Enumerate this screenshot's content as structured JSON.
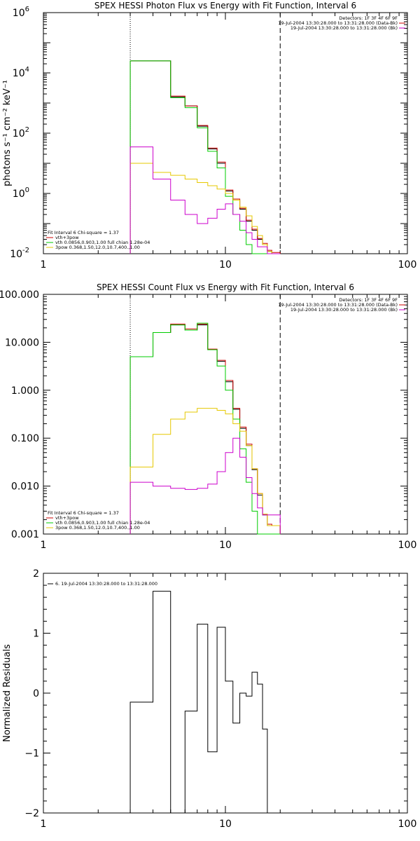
{
  "chart_data": [
    {
      "type": "line",
      "title": "SPEX HESSI Photon Flux vs Energy with Fit Function, Interval 6",
      "ylabel": "photons s⁻¹ cm⁻² keV⁻¹",
      "xlabel": "",
      "xscale": "log",
      "yscale": "log",
      "xlim": [
        1,
        100
      ],
      "ylim": [
        0.01,
        1000000
      ],
      "x_ticks": [
        {
          "v": 1,
          "label": "1"
        },
        {
          "v": 10,
          "label": "10"
        },
        {
          "v": 100,
          "label": "100"
        }
      ],
      "y_ticks": [
        {
          "v": 0.01,
          "base": "10",
          "exp": "-2"
        },
        {
          "v": 1,
          "base": "10",
          "exp": "0"
        },
        {
          "v": 100,
          "base": "10",
          "exp": "2"
        },
        {
          "v": 10000,
          "base": "10",
          "exp": "4"
        },
        {
          "v": 1000000,
          "base": "10",
          "exp": "6"
        }
      ],
      "vlines": [
        {
          "x": 3,
          "style": "dotted"
        },
        {
          "x": 20,
          "style": "dashed"
        }
      ],
      "legend_top_right": [
        {
          "text": "Detectors: 1F 3F 4F 6F 9F",
          "color": "#000000"
        },
        {
          "text": "19-Jul-2004 13:30:28.000 to 13:31:28.000 (Data-Bk)",
          "color": "#cc0000"
        },
        {
          "text": "19-Jul-2004 13:30:28.000 to 13:31:28.000 (Bk)",
          "color": "#cc00cc"
        }
      ],
      "legend_bottom_left": [
        {
          "text": "Fit Interval  6    Chi-square = 1.37",
          "color": "#000000"
        },
        {
          "text": "vth+3pow",
          "color": "#cc0000"
        },
        {
          "text": "vth 0.0856,0.903,1.00  full chian 1.28e-04",
          "color": "#00cc00"
        },
        {
          "text": "3pow 0.368,1.50,12.0,10.7,400.,1.00",
          "color": "#e6c800"
        }
      ],
      "bin_edges": [
        3,
        4,
        5,
        6,
        7,
        8,
        9,
        10,
        11,
        12,
        13,
        14,
        15,
        16,
        17,
        18,
        20
      ],
      "series": [
        {
          "color": "#000000",
          "values": [
            25000,
            25000,
            1600,
            800,
            170,
            30,
            10,
            1.2,
            0.6,
            0.3,
            0.12,
            0.06,
            0.03,
            0.02,
            0.012,
            0.01
          ]
        },
        {
          "color": "#cc0000",
          "values": [
            25000,
            25000,
            1700,
            800,
            180,
            32,
            11,
            1.3,
            0.65,
            0.32,
            0.13,
            0.065,
            0.032,
            0.022,
            0.013,
            0.011
          ]
        },
        {
          "color": "#00cc00",
          "values": [
            25000,
            25000,
            1500,
            700,
            150,
            25,
            7,
            0.8,
            0.2,
            0.06,
            0.02,
            0.01,
            0.01,
            0.01,
            0.01,
            0.01
          ]
        },
        {
          "color": "#e6c800",
          "values": [
            10,
            5,
            4,
            3,
            2.3,
            1.8,
            1.4,
            1,
            0.6,
            0.35,
            0.18,
            0.08,
            0.04,
            0.02,
            0.012,
            0.01
          ]
        },
        {
          "color": "#cc00cc",
          "values": [
            35,
            3,
            0.6,
            0.2,
            0.1,
            0.15,
            0.3,
            0.45,
            0.2,
            0.12,
            0.05,
            0.03,
            0.017,
            0.017,
            0.01,
            0.01
          ]
        }
      ]
    },
    {
      "type": "line",
      "title": "SPEX HESSI Count Flux vs Energy with Fit Function, Interval 6",
      "ylabel": "",
      "xlabel": "",
      "xscale": "log",
      "yscale": "log",
      "xlim": [
        1,
        100
      ],
      "ylim": [
        0.001,
        100
      ],
      "x_ticks": [
        {
          "v": 1,
          "label": "1"
        },
        {
          "v": 10,
          "label": "10"
        },
        {
          "v": 100,
          "label": "100"
        }
      ],
      "y_ticks": [
        {
          "v": 0.001,
          "label": "0.001"
        },
        {
          "v": 0.01,
          "label": "0.010"
        },
        {
          "v": 0.1,
          "label": "0.100"
        },
        {
          "v": 1,
          "label": "1.000"
        },
        {
          "v": 10,
          "label": "10.000"
        },
        {
          "v": 100,
          "label": "100.000"
        }
      ],
      "vlines": [
        {
          "x": 3,
          "style": "dotted"
        },
        {
          "x": 20,
          "style": "dashed"
        }
      ],
      "legend_top_right": [
        {
          "text": "Detectors: 1F 3F 4F 6F 9F",
          "color": "#000000"
        },
        {
          "text": "19-Jul-2004 13:30:28.000 to 13:31:28.000 (Data-Bk)",
          "color": "#cc0000"
        },
        {
          "text": "19-Jul-2004 13:30:28.000 to 13:31:28.000 (Bk)",
          "color": "#cc00cc"
        }
      ],
      "legend_bottom_left": [
        {
          "text": "Fit Interval  6    Chi-square = 1.37",
          "color": "#000000"
        },
        {
          "text": "vth+3pow",
          "color": "#cc0000"
        },
        {
          "text": "vth 0.0856,0.903,1.00  full chian 1.28e-04",
          "color": "#00cc00"
        },
        {
          "text": "3pow 0.368,1.50,12.0,10.7,400.,1.00",
          "color": "#e6c800"
        }
      ],
      "bin_edges": [
        3,
        4,
        5,
        6,
        7,
        8,
        9,
        10,
        11,
        12,
        13,
        14,
        15,
        16,
        17,
        18,
        20
      ],
      "series": [
        {
          "color": "#000000",
          "values": [
            5,
            16,
            23,
            18,
            23,
            7,
            4,
            1.5,
            0.4,
            0.16,
            0.07,
            0.022,
            0.0065,
            0.0025,
            0.0015,
            0.0015
          ]
        },
        {
          "color": "#cc0000",
          "values": [
            5,
            16,
            24,
            19,
            24,
            7.2,
            4.2,
            1.6,
            0.42,
            0.17,
            0.075,
            0.023,
            0.007,
            0.0026,
            0.0016,
            0.0015
          ]
        },
        {
          "color": "#00cc00",
          "values": [
            5,
            16,
            23,
            18,
            25,
            7,
            3.2,
            1.0,
            0.25,
            0.06,
            0.012,
            0.003,
            0.001,
            0.001,
            0.001,
            0.001
          ]
        },
        {
          "color": "#e6c800",
          "values": [
            0.025,
            0.12,
            0.25,
            0.35,
            0.42,
            0.42,
            0.38,
            0.32,
            0.2,
            0.14,
            0.07,
            0.023,
            0.007,
            0.0026,
            0.0015,
            0.0015
          ]
        },
        {
          "color": "#cc00cc",
          "values": [
            0.012,
            0.01,
            0.009,
            0.0085,
            0.009,
            0.011,
            0.02,
            0.05,
            0.1,
            0.04,
            0.015,
            0.007,
            0.0035,
            0.0025,
            0.0025,
            0.0025
          ]
        }
      ]
    },
    {
      "type": "line",
      "title": "",
      "ylabel": "Normalized Residuals",
      "xlabel": "",
      "xscale": "log",
      "yscale": "linear",
      "xlim": [
        1,
        100
      ],
      "ylim": [
        -2,
        2
      ],
      "x_ticks": [
        {
          "v": 1,
          "label": "1"
        },
        {
          "v": 10,
          "label": "10"
        },
        {
          "v": 100,
          "label": "100"
        }
      ],
      "y_ticks": [
        {
          "v": -2,
          "label": "−2"
        },
        {
          "v": -1,
          "label": "−1"
        },
        {
          "v": 0,
          "label": "0"
        },
        {
          "v": 1,
          "label": "1"
        },
        {
          "v": 2,
          "label": "2"
        }
      ],
      "vlines": [],
      "legend_top_left": [
        {
          "text": "6. 19-Jul-2004 13:30:28.000 to 13:31:28.000",
          "color": "#000000"
        }
      ],
      "bin_edges": [
        3,
        4,
        5,
        6,
        7,
        8,
        9,
        10,
        11,
        12,
        13,
        14,
        15,
        16,
        17,
        18,
        20
      ],
      "series": [
        {
          "color": "#000000",
          "values": [
            -0.15,
            1.7,
            -2.05,
            -0.3,
            1.15,
            -0.98,
            1.1,
            0.2,
            -0.5,
            0.0,
            -0.05,
            0.35,
            0.15,
            -0.6,
            -2.1,
            -2.1
          ],
          "clip_at": 14
        }
      ]
    }
  ]
}
